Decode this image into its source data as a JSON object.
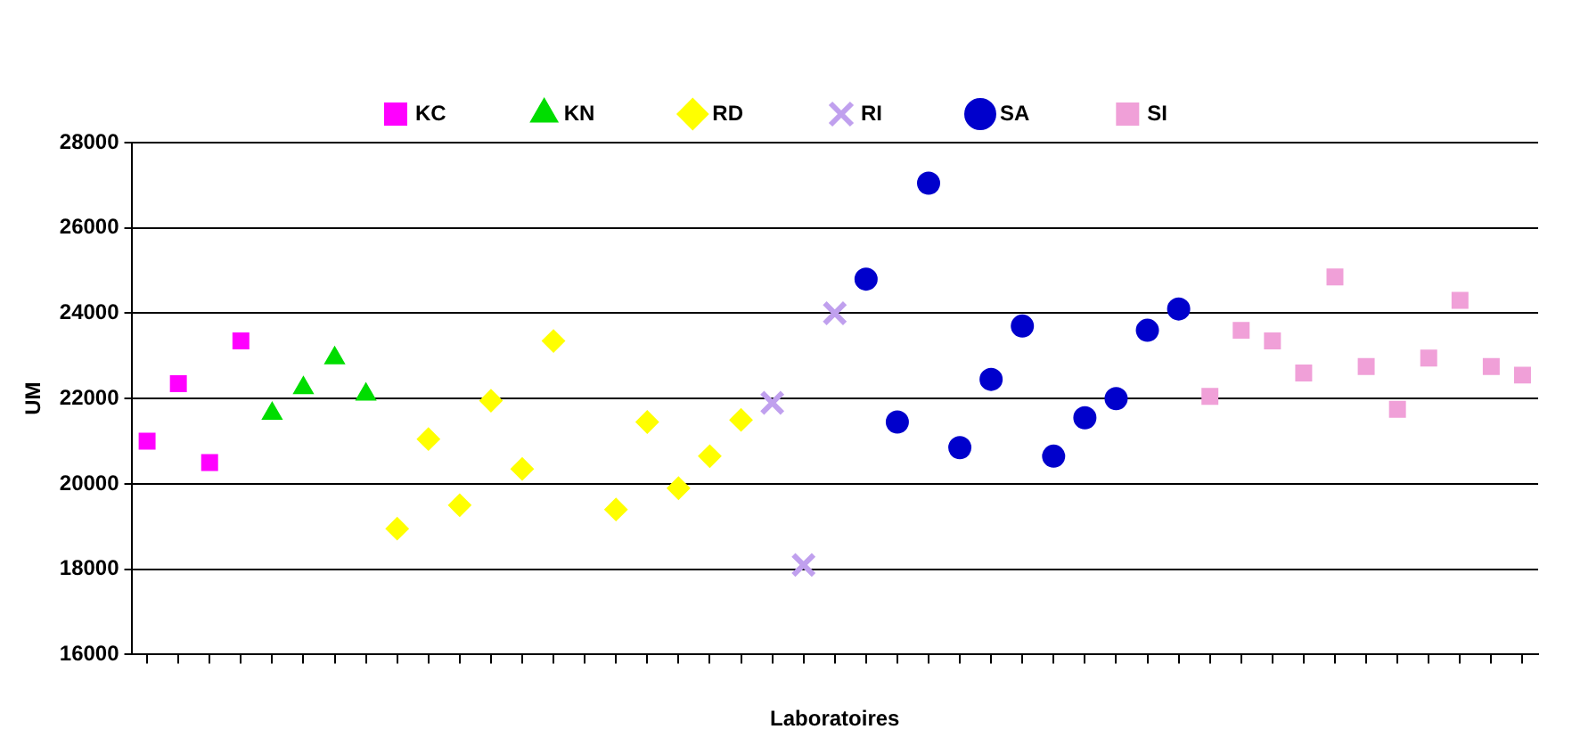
{
  "chart_data": {
    "type": "scatter",
    "xlabel": "Laboratoires",
    "ylabel": "UM",
    "categories": [
      null,
      null,
      null,
      null,
      null,
      null,
      null,
      null,
      null,
      null,
      null,
      null,
      null,
      null,
      null,
      null,
      null,
      null,
      null,
      null,
      null,
      null,
      null,
      null,
      null,
      null,
      null,
      null,
      null,
      null,
      null,
      null,
      null,
      null,
      null,
      null,
      null,
      null,
      null,
      null,
      null,
      null,
      null,
      null,
      null
    ],
    "ylim": [
      16000,
      28000
    ],
    "yticks": [
      16000,
      18000,
      20000,
      22000,
      24000,
      26000,
      28000
    ],
    "grid": "y",
    "legend": "top",
    "series": [
      {
        "name": "KC",
        "color": "#ff00ff",
        "marker": "square",
        "values": [
          21000,
          22350,
          20500,
          23350,
          null,
          null,
          null,
          null,
          null,
          null,
          null,
          null,
          null,
          null,
          null,
          null,
          null,
          null,
          null,
          null,
          null,
          null,
          null,
          null,
          null,
          null,
          null,
          null,
          null,
          null,
          null,
          null,
          null,
          null,
          null,
          null,
          null,
          null,
          null,
          null,
          null,
          null,
          null,
          null,
          null
        ]
      },
      {
        "name": "KN",
        "color": "#00dd00",
        "marker": "triangle",
        "values": [
          null,
          null,
          null,
          null,
          21650,
          22250,
          22950,
          22100,
          null,
          null,
          null,
          null,
          null,
          null,
          null,
          null,
          null,
          null,
          null,
          null,
          null,
          null,
          null,
          null,
          null,
          null,
          null,
          null,
          null,
          null,
          null,
          null,
          null,
          null,
          null,
          null,
          null,
          null,
          null,
          null,
          null,
          null,
          null,
          null,
          null
        ]
      },
      {
        "name": "RD",
        "color": "#ffff00",
        "marker": "diamond",
        "values": [
          null,
          null,
          null,
          null,
          null,
          null,
          null,
          null,
          18950,
          21050,
          19500,
          21950,
          20350,
          23350,
          null,
          19400,
          21450,
          19900,
          20650,
          21500,
          null,
          null,
          null,
          null,
          null,
          null,
          null,
          null,
          null,
          null,
          null,
          null,
          null,
          null,
          null,
          null,
          null,
          null,
          null,
          null,
          null,
          null,
          null,
          null,
          null
        ]
      },
      {
        "name": "RI",
        "color": "#c0a0ee",
        "marker": "cross",
        "values": [
          null,
          null,
          null,
          null,
          null,
          null,
          null,
          null,
          null,
          null,
          null,
          null,
          null,
          null,
          null,
          null,
          null,
          null,
          null,
          null,
          21900,
          18100,
          24000,
          null,
          null,
          null,
          null,
          null,
          null,
          null,
          null,
          null,
          null,
          null,
          null,
          null,
          null,
          null,
          null,
          null,
          null,
          null,
          null,
          null,
          null
        ]
      },
      {
        "name": "SA",
        "color": "#0000cc",
        "marker": "circle",
        "values": [
          null,
          null,
          null,
          null,
          null,
          null,
          null,
          null,
          null,
          null,
          null,
          null,
          null,
          null,
          null,
          null,
          null,
          null,
          null,
          null,
          null,
          null,
          null,
          24800,
          21450,
          27050,
          20850,
          22450,
          23700,
          20650,
          21550,
          22000,
          23600,
          24100,
          null,
          null,
          null,
          null,
          null,
          null,
          null,
          null,
          null,
          null,
          null
        ]
      },
      {
        "name": "SI",
        "color": "#f0a0d8",
        "marker": "square",
        "values": [
          null,
          null,
          null,
          null,
          null,
          null,
          null,
          null,
          null,
          null,
          null,
          null,
          null,
          null,
          null,
          null,
          null,
          null,
          null,
          null,
          null,
          null,
          null,
          null,
          null,
          null,
          null,
          null,
          null,
          null,
          null,
          null,
          null,
          null,
          22050,
          23600,
          23350,
          22600,
          24850,
          22750,
          21750,
          22950,
          24300,
          22750,
          22550
        ]
      }
    ]
  }
}
